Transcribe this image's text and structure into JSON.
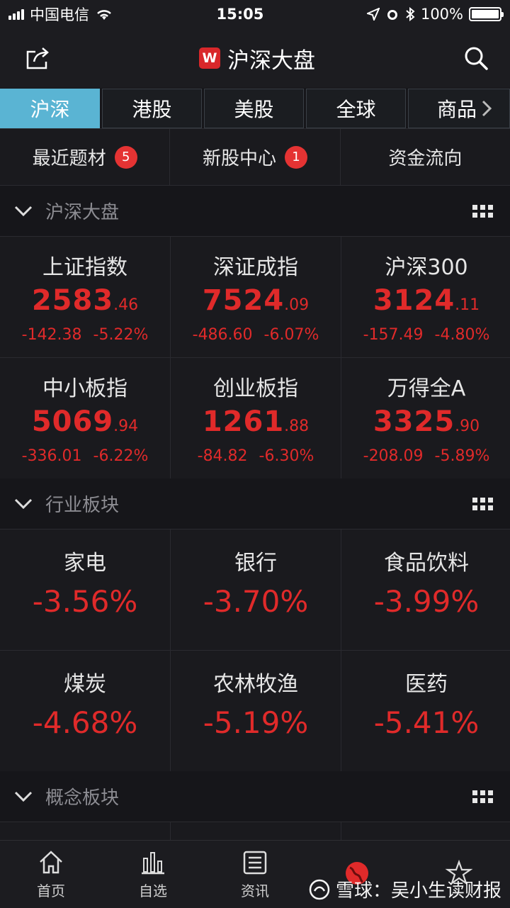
{
  "status": {
    "carrier": "中国电信",
    "time": "15:05",
    "battery": "100%"
  },
  "header": {
    "title": "沪深大盘",
    "logo_letter": "W"
  },
  "tabs": [
    {
      "label": "沪深",
      "active": true
    },
    {
      "label": "港股",
      "active": false
    },
    {
      "label": "美股",
      "active": false
    },
    {
      "label": "全球",
      "active": false
    },
    {
      "label": "商品",
      "active": false
    }
  ],
  "quick": [
    {
      "label": "最近题材",
      "badge": "5"
    },
    {
      "label": "新股中心",
      "badge": "1"
    },
    {
      "label": "资金流向",
      "badge": ""
    }
  ],
  "sections": {
    "market": "沪深大盘",
    "industry": "行业板块",
    "concept": "概念板块"
  },
  "indices": [
    {
      "name": "上证指数",
      "int": "2583",
      "dec": ".46",
      "change": "-142.38",
      "pct": "-5.22%"
    },
    {
      "name": "深证成指",
      "int": "7524",
      "dec": ".09",
      "change": "-486.60",
      "pct": "-6.07%"
    },
    {
      "name": "沪深300",
      "int": "3124",
      "dec": ".11",
      "change": "-157.49",
      "pct": "-4.80%"
    },
    {
      "name": "中小板指",
      "int": "5069",
      "dec": ".94",
      "change": "-336.01",
      "pct": "-6.22%"
    },
    {
      "name": "创业板指",
      "int": "1261",
      "dec": ".88",
      "change": "-84.82",
      "pct": "-6.30%"
    },
    {
      "name": "万得全A",
      "int": "3325",
      "dec": ".90",
      "change": "-208.09",
      "pct": "-5.89%"
    }
  ],
  "industries": [
    {
      "name": "家电",
      "pct": "-3.56%"
    },
    {
      "name": "银行",
      "pct": "-3.70%"
    },
    {
      "name": "食品饮料",
      "pct": "-3.99%"
    },
    {
      "name": "煤炭",
      "pct": "-4.68%"
    },
    {
      "name": "农林牧渔",
      "pct": "-5.19%"
    },
    {
      "name": "医药",
      "pct": "-5.41%"
    }
  ],
  "tabbar": [
    {
      "label": "首页",
      "icon": "home-icon"
    },
    {
      "label": "自选",
      "icon": "bar-chart-icon"
    },
    {
      "label": "资讯",
      "icon": "news-icon"
    },
    {
      "label": "",
      "icon": "globe-icon"
    },
    {
      "label": "",
      "icon": "star-icon"
    }
  ],
  "watermark": "雪球：吴小生读财报",
  "colors": {
    "down": "#e02a2a",
    "tab_active": "#5ab4d3",
    "badge": "#e53333"
  }
}
